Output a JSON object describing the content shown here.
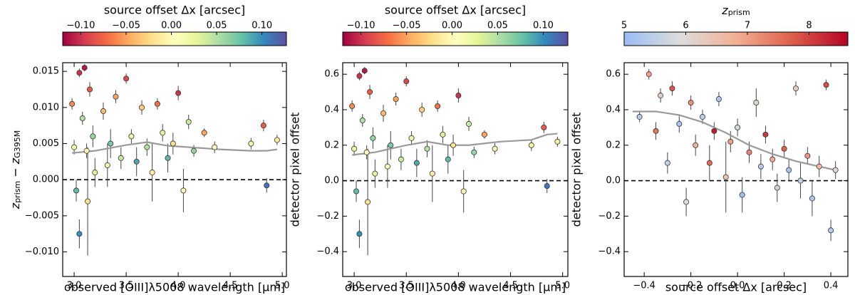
{
  "chart_data": [
    {
      "type": "scatter",
      "colorbar_label": "source offset Δx [arcsec]",
      "clim": [
        -0.12,
        0.127
      ],
      "cticks": [
        {
          "value": -0.1,
          "label": "−0.10"
        },
        {
          "value": -0.05,
          "label": "−0.05"
        },
        {
          "value": 0,
          "label": "0.00"
        },
        {
          "value": 0.05,
          "label": "0.05"
        },
        {
          "value": 0.1,
          "label": "0.10"
        }
      ],
      "colormap": [
        "#9e0142",
        "#d53e4f",
        "#f46d43",
        "#fdae61",
        "#fee08b",
        "#ffffbf",
        "#e6f598",
        "#abdda4",
        "#66c2a5",
        "#3288bd",
        "#5e4fa2"
      ],
      "xlabel": "observed [OIII]λ5008 wavelength [μm]",
      "ylabel": [
        {
          "text": "z",
          "italic": true
        },
        {
          "text": "prism",
          "sub": true
        },
        {
          "text": " − ",
          "italic": false
        },
        {
          "text": "z",
          "italic": true
        },
        {
          "text": "G395M",
          "sub": true
        }
      ],
      "xlim": [
        2.89,
        5.04
      ],
      "ylim": [
        -0.0134,
        0.0162
      ],
      "xticks": [
        {
          "value": 3.0,
          "label": "3.0"
        },
        3.5,
        {
          "value": 4.0,
          "label": "4.0"
        },
        4.5,
        {
          "value": 5.0,
          "label": "5.0"
        }
      ],
      "yticks": [
        {
          "value": 0.015,
          "label": "0.015"
        },
        {
          "value": 0.01,
          "label": "0.010"
        },
        {
          "value": 0.005,
          "label": "0.005"
        },
        {
          "value": 0,
          "label": "0.000"
        },
        {
          "value": -0.005,
          "label": "−0.005"
        },
        {
          "value": -0.01,
          "label": "−0.010"
        }
      ],
      "hline": 0,
      "x": [
        2.98,
        3.0,
        3.02,
        3.05,
        3.05,
        3.08,
        3.1,
        3.12,
        3.13,
        3.15,
        3.18,
        3.2,
        3.28,
        3.32,
        3.35,
        3.4,
        3.45,
        3.5,
        3.55,
        3.6,
        3.65,
        3.7,
        3.75,
        3.8,
        3.85,
        3.9,
        3.95,
        4.0,
        4.05,
        4.1,
        4.15,
        4.25,
        4.35,
        4.7,
        4.82,
        4.85,
        4.95
      ],
      "y": [
        0.0105,
        0.0045,
        -0.0015,
        0.0148,
        -0.0075,
        0.0085,
        0.0155,
        0.004,
        -0.003,
        0.0125,
        0.006,
        0.001,
        0.0095,
        0.002,
        0.005,
        0.0115,
        0.003,
        0.014,
        0.006,
        0.0025,
        0.01,
        0.0045,
        0.001,
        0.0105,
        0.0065,
        0.003,
        0.005,
        0.012,
        -0.0015,
        0.008,
        0.004,
        0.0065,
        0.0045,
        0.005,
        0.0075,
        -0.0008,
        0.0055
      ],
      "yerr": [
        0.0008,
        0.001,
        0.0015,
        0.0006,
        0.002,
        0.0009,
        0.0005,
        0.001,
        0.0075,
        0.001,
        0.0015,
        0.002,
        0.0012,
        0.003,
        0.002,
        0.0009,
        0.0015,
        0.0007,
        0.001,
        0.002,
        0.001,
        0.0012,
        0.004,
        0.0008,
        0.0012,
        0.002,
        0.0015,
        0.001,
        0.003,
        0.001,
        0.0008,
        0.0006,
        0.0008,
        0.0008,
        0.0008,
        0.001,
        0.0007
      ],
      "c": [
        -0.06,
        0.02,
        0.08,
        -0.1,
        0.1,
        0.05,
        -0.11,
        0.0,
        -0.02,
        -0.08,
        0.06,
        0.03,
        -0.04,
        0.01,
        0.07,
        -0.05,
        0.04,
        -0.09,
        0.02,
        0.09,
        -0.03,
        0.05,
        -0.01,
        -0.07,
        0.03,
        0.08,
        -0.02,
        -0.1,
        0.0,
        0.04,
        0.06,
        -0.05,
        0.01,
        0.02,
        -0.08,
        0.11,
        -0.01
      ],
      "trend": {
        "color": "#999999",
        "x": [
          2.98,
          3.2,
          3.5,
          3.7,
          3.9,
          4.1,
          4.4,
          4.7,
          4.85,
          4.95
        ],
        "y": [
          0.0037,
          0.004,
          0.0048,
          0.0052,
          0.0047,
          0.0045,
          0.0042,
          0.004,
          0.004,
          0.0042
        ]
      }
    },
    {
      "type": "scatter",
      "colorbar_label": "source offset Δx [arcsec]",
      "clim": [
        -0.12,
        0.127
      ],
      "cticks": [
        {
          "value": -0.1,
          "label": "−0.10"
        },
        {
          "value": -0.05,
          "label": "−0.05"
        },
        {
          "value": 0,
          "label": "0.00"
        },
        {
          "value": 0.05,
          "label": "0.05"
        },
        {
          "value": 0.1,
          "label": "0.10"
        }
      ],
      "colormap": [
        "#9e0142",
        "#d53e4f",
        "#f46d43",
        "#fdae61",
        "#fee08b",
        "#ffffbf",
        "#e6f598",
        "#abdda4",
        "#66c2a5",
        "#3288bd",
        "#5e4fa2"
      ],
      "xlabel": "observed [OIII]λ5008 wavelength [μm]",
      "ylabel": "detector pixel offset",
      "xlim": [
        2.89,
        5.05
      ],
      "ylim": [
        -0.54,
        0.665
      ],
      "xticks": [
        {
          "value": 3.0,
          "label": "3.0"
        },
        3.5,
        {
          "value": 4.0,
          "label": "4.0"
        },
        4.5,
        {
          "value": 5.0,
          "label": "5.0"
        }
      ],
      "yticks": [
        0.6,
        0.4,
        0.2,
        {
          "value": 0,
          "label": "0.0"
        },
        {
          "value": -0.2,
          "label": "−0.2"
        },
        {
          "value": -0.4,
          "label": "−0.4"
        }
      ],
      "hline": 0,
      "x": [
        2.98,
        3.0,
        3.02,
        3.05,
        3.05,
        3.08,
        3.1,
        3.12,
        3.13,
        3.15,
        3.18,
        3.2,
        3.28,
        3.32,
        3.35,
        3.4,
        3.45,
        3.5,
        3.55,
        3.6,
        3.65,
        3.7,
        3.75,
        3.8,
        3.85,
        3.9,
        3.95,
        4.0,
        4.05,
        4.1,
        4.15,
        4.25,
        4.35,
        4.7,
        4.82,
        4.85,
        4.95
      ],
      "y": [
        0.42,
        0.18,
        -0.06,
        0.59,
        -0.3,
        0.34,
        0.62,
        0.16,
        -0.12,
        0.5,
        0.24,
        0.04,
        0.38,
        0.08,
        0.2,
        0.46,
        0.12,
        0.56,
        0.24,
        0.1,
        0.4,
        0.18,
        0.04,
        0.42,
        0.26,
        0.12,
        0.2,
        0.48,
        -0.06,
        0.32,
        0.16,
        0.26,
        0.18,
        0.2,
        0.3,
        -0.03,
        0.22
      ],
      "yerr": [
        0.032,
        0.04,
        0.06,
        0.024,
        0.08,
        0.036,
        0.02,
        0.04,
        0.3,
        0.04,
        0.06,
        0.08,
        0.048,
        0.12,
        0.08,
        0.036,
        0.06,
        0.028,
        0.04,
        0.08,
        0.04,
        0.048,
        0.16,
        0.032,
        0.048,
        0.08,
        0.06,
        0.04,
        0.12,
        0.04,
        0.032,
        0.024,
        0.032,
        0.032,
        0.032,
        0.04,
        0.028
      ],
      "c": [
        -0.06,
        0.02,
        0.08,
        -0.1,
        0.1,
        0.05,
        -0.11,
        0.0,
        -0.02,
        -0.08,
        0.06,
        0.03,
        -0.04,
        0.01,
        0.07,
        -0.05,
        0.04,
        -0.09,
        0.02,
        0.09,
        -0.03,
        0.05,
        -0.01,
        -0.07,
        0.03,
        0.08,
        -0.02,
        -0.1,
        0.0,
        0.04,
        0.06,
        -0.05,
        0.01,
        0.02,
        -0.08,
        0.11,
        -0.01
      ],
      "trend": {
        "color": "#999999",
        "x": [
          2.98,
          3.2,
          3.5,
          3.7,
          3.9,
          4.1,
          4.4,
          4.7,
          4.85,
          4.95
        ],
        "y": [
          0.145,
          0.16,
          0.2,
          0.22,
          0.2,
          0.2,
          0.22,
          0.23,
          0.26,
          0.265
        ]
      }
    },
    {
      "type": "scatter",
      "colorbar_label": [
        {
          "text": "z",
          "italic": true
        },
        {
          "text": "prism",
          "sub": true
        }
      ],
      "clim": [
        5,
        8.63
      ],
      "cticks": [
        5,
        6,
        7,
        8
      ],
      "colormap": [
        "#9bbcf5",
        "#dcdddd",
        "#f3b095",
        "#dd5f4b",
        "#b40426"
      ],
      "xlabel": "source offset Δx [arcsec]",
      "ylabel": "detector pixel offset",
      "xlim": [
        -0.486,
        0.473
      ],
      "ylim": [
        -0.54,
        0.665
      ],
      "xticks": [
        {
          "value": -0.4,
          "label": "−0.4"
        },
        {
          "value": -0.2,
          "label": "−0.2"
        },
        {
          "value": 0,
          "label": "0.0"
        },
        0.2,
        0.4
      ],
      "yticks": [
        0.6,
        0.4,
        0.2,
        {
          "value": 0,
          "label": "0.0"
        },
        {
          "value": -0.2,
          "label": "−0.2"
        },
        {
          "value": -0.4,
          "label": "−0.4"
        }
      ],
      "hline": 0,
      "x": [
        -0.42,
        -0.38,
        -0.35,
        -0.33,
        -0.3,
        -0.28,
        -0.25,
        -0.22,
        -0.2,
        -0.18,
        -0.15,
        -0.12,
        -0.1,
        -0.08,
        -0.05,
        -0.03,
        0.0,
        0.02,
        0.05,
        0.08,
        0.1,
        0.12,
        0.15,
        0.17,
        0.2,
        0.22,
        0.25,
        0.27,
        0.3,
        0.32,
        0.35,
        0.38,
        0.4,
        0.42
      ],
      "y": [
        0.36,
        0.6,
        0.28,
        0.48,
        0.1,
        0.52,
        0.32,
        -0.12,
        0.44,
        0.2,
        0.36,
        0.1,
        0.28,
        0.46,
        0.02,
        0.22,
        0.3,
        -0.08,
        0.16,
        0.44,
        0.08,
        0.26,
        0.12,
        -0.04,
        0.18,
        0.06,
        0.52,
        0.0,
        0.14,
        -0.1,
        0.08,
        0.54,
        -0.28,
        0.06
      ],
      "yerr": [
        0.03,
        0.03,
        0.05,
        0.04,
        0.06,
        0.04,
        0.05,
        0.08,
        0.04,
        0.06,
        0.04,
        0.1,
        0.05,
        0.04,
        0.2,
        0.06,
        0.05,
        0.1,
        0.06,
        0.08,
        0.07,
        0.05,
        0.06,
        0.08,
        0.05,
        0.06,
        0.04,
        0.1,
        0.05,
        0.1,
        0.06,
        0.03,
        0.06,
        0.05
      ],
      "c": [
        5.4,
        7.0,
        7.5,
        6.2,
        5.6,
        7.8,
        5.2,
        5.9,
        7.2,
        6.8,
        5.5,
        7.6,
        8.4,
        5.3,
        6.5,
        7.0,
        5.8,
        5.1,
        7.3,
        6.1,
        5.4,
        8.1,
        6.9,
        5.7,
        7.7,
        5.2,
        6.3,
        5.6,
        7.1,
        5.3,
        6.6,
        7.9,
        5.4,
        6.0
      ],
      "trend": {
        "color": "#999999",
        "x": [
          -0.45,
          -0.35,
          -0.25,
          -0.15,
          -0.05,
          0.05,
          0.15,
          0.25,
          0.35,
          0.42
        ],
        "y": [
          0.39,
          0.39,
          0.37,
          0.33,
          0.27,
          0.2,
          0.15,
          0.11,
          0.08,
          0.06
        ]
      }
    }
  ]
}
